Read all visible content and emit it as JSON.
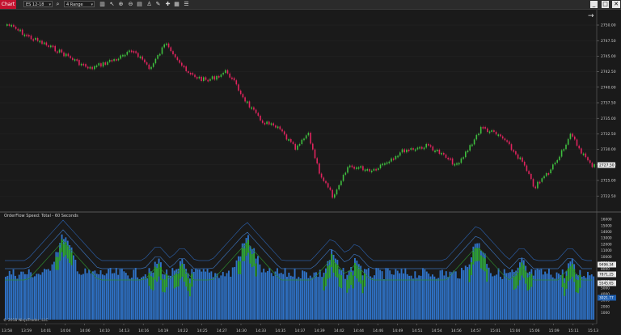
{
  "toolbar": {
    "chart_tab": "Chart",
    "instrument": "ES 12-18",
    "bar_type": "4 Range"
  },
  "price_pane": {
    "axis_labels": [
      "2750.00",
      "2747.50",
      "2745.00",
      "2742.50",
      "2740.00",
      "2737.50",
      "2735.00",
      "2732.50",
      "2730.00",
      "2727.50",
      "2725.00",
      "2722.50"
    ],
    "current_price": "2727.50"
  },
  "indicator_pane": {
    "title": "OrderFlow Speed: Total - 60 Seconds",
    "axis_labels": [
      "16000",
      "15000",
      "14000",
      "13000",
      "12000",
      "11000",
      "10000",
      "9000",
      "8000",
      "7000",
      "6000",
      "5000",
      "4000",
      "3000",
      "2000",
      "1000"
    ],
    "value_labels": [
      "9496.34",
      "7871.25",
      "5545.65",
      "3021.77"
    ]
  },
  "time_axis": [
    "13:58",
    "13:59",
    "14:01",
    "14:04",
    "14:06",
    "14:10",
    "14:13",
    "14:16",
    "14:19",
    "14:22",
    "14:25",
    "14:27",
    "14:30",
    "14:33",
    "14:35",
    "14:37",
    "14:39",
    "14:42",
    "14:44",
    "14:46",
    "14:49",
    "14:51",
    "14:54",
    "14:56",
    "14:57",
    "15:01",
    "15:04",
    "15:06",
    "15:09",
    "15:11",
    "15:13"
  ],
  "copyright": "© 2018 NinjaTrader, LLC",
  "colors": {
    "up": "#3fbf3f",
    "down": "#e0245e",
    "bar_blue": "#2f73c8",
    "bar_green": "#2fa52f",
    "tab_red": "#c4122f"
  }
}
